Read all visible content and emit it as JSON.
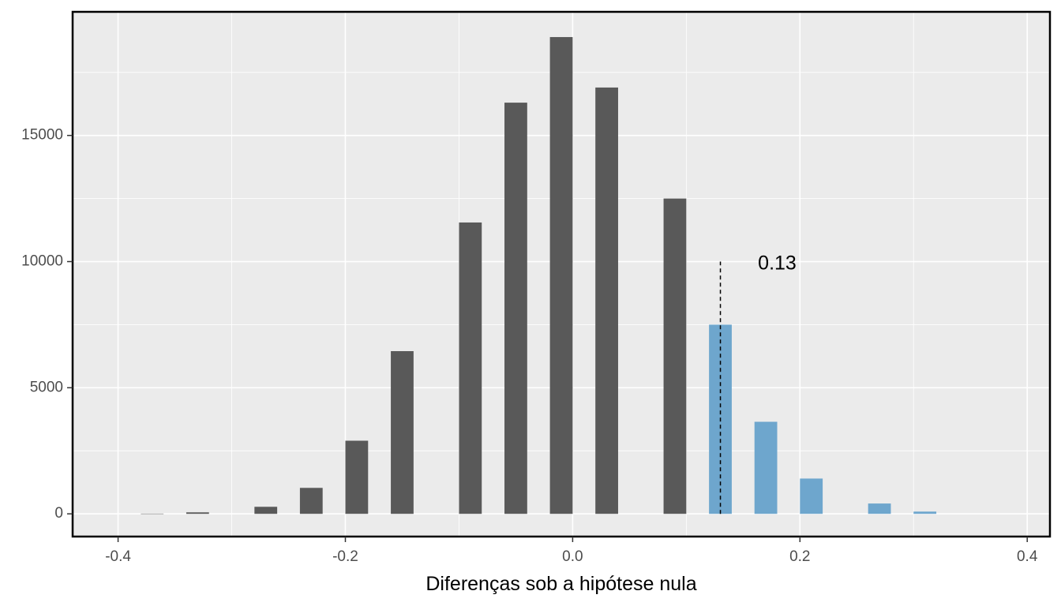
{
  "chart_data": {
    "type": "bar",
    "title": "",
    "xlabel": "Diferenças sob a hipótese nula",
    "ylabel": "",
    "xlim": [
      -0.44,
      0.42
    ],
    "ylim": [
      -900,
      19900
    ],
    "grid": true,
    "x_ticks": [
      -0.4,
      -0.2,
      0.0,
      0.2,
      0.4
    ],
    "x_tick_labels": [
      "-0.4",
      "-0.2",
      "0.0",
      "0.2",
      "0.4"
    ],
    "y_ticks": [
      0,
      5000,
      10000,
      15000
    ],
    "y_tick_labels": [
      "0",
      "5000",
      "10000",
      "15000"
    ],
    "bar_width": 0.02,
    "colors": {
      "below": "#595959",
      "above": "#6ea6cd",
      "panel": "#ebebeb",
      "grid": "#ffffff"
    },
    "series": [
      {
        "color_key": "below",
        "x": [
          -0.37,
          -0.33,
          -0.27,
          -0.23,
          -0.19,
          -0.15,
          -0.09,
          -0.05,
          -0.01,
          0.03,
          0.09
        ],
        "values": [
          10,
          60,
          280,
          1030,
          2900,
          6450,
          11550,
          16300,
          18900,
          16900,
          12500
        ]
      },
      {
        "color_key": "above",
        "x": [
          0.13,
          0.17,
          0.21,
          0.27,
          0.31
        ],
        "values": [
          7500,
          3650,
          1400,
          410,
          90
        ]
      }
    ],
    "annotations": [
      {
        "type": "vline",
        "x": 0.13,
        "y_range": [
          0,
          10000
        ],
        "style": "dashed"
      },
      {
        "type": "text",
        "text": "0.13",
        "x": 0.18,
        "y": 9900
      }
    ]
  }
}
